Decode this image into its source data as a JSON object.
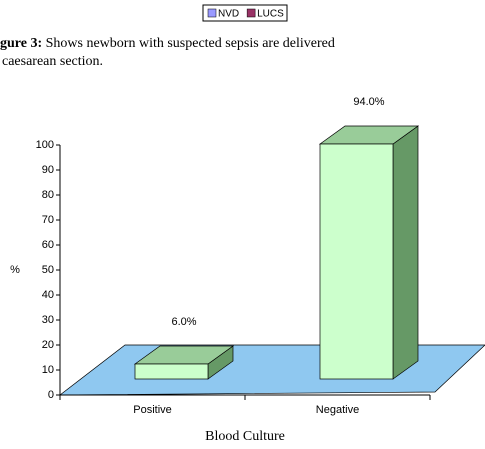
{
  "chart_data": {
    "type": "bar3d",
    "caption": {
      "label": "gure 3:",
      "text": "Shows newborn with suspected sepsis are delivered",
      "text2": "caesarean section."
    },
    "legend": [
      {
        "name": "NVD",
        "color": "#9999ff"
      },
      {
        "name": "LUCS",
        "color": "#993366"
      }
    ],
    "x_label": "Blood Culture",
    "y_label": "%",
    "categories": [
      "Positive",
      "Negative"
    ],
    "values": [
      6,
      94
    ],
    "value_labels": [
      "6.0%",
      "94.0%"
    ],
    "colors": {
      "front": "#ccffcc",
      "top": "#99cc99",
      "side": "#669966",
      "floor": "#8fc8f0"
    },
    "ylim": [
      0,
      100
    ],
    "yticks": [
      0,
      10,
      20,
      30,
      40,
      50,
      60,
      70,
      80,
      90,
      100
    ]
  }
}
